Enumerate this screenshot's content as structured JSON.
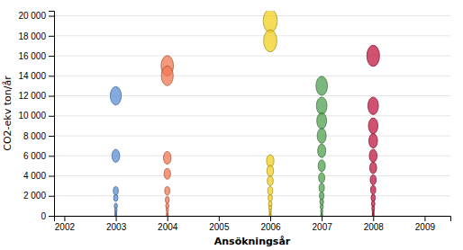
{
  "chart_data": {
    "type": "bubble",
    "xlabel": "Ansökningsår",
    "ylabel": "CO2-ekv ton/år",
    "xlim": [
      2001.8,
      2009.5
    ],
    "ylim": [
      0,
      20500
    ],
    "xticks": [
      2002,
      2003,
      2004,
      2005,
      2006,
      2007,
      2008,
      2009
    ],
    "yticks": [
      0,
      {
        "value": 2000,
        "label": "2 000"
      },
      {
        "value": 4000,
        "label": "4 000"
      },
      {
        "value": 6000,
        "label": "6 000"
      },
      {
        "value": 8000,
        "label": "8 000"
      },
      {
        "value": 10000,
        "label": "10 000"
      },
      {
        "value": 12000,
        "label": "12 000"
      },
      {
        "value": 14000,
        "label": "14 000"
      },
      {
        "value": 16000,
        "label": "16 000"
      },
      {
        "value": 18000,
        "label": "18 000"
      },
      {
        "value": 20000,
        "label": "20 000"
      }
    ],
    "grid": true,
    "series": [
      {
        "x": 2003,
        "color": "#5B8FD4",
        "values": [
          12000,
          6000,
          2500,
          1800,
          1000,
          600,
          350,
          180,
          80,
          30
        ]
      },
      {
        "x": 2004,
        "color": "#F07850",
        "values": [
          15000,
          14000,
          5800,
          4200,
          2500,
          1600,
          1000,
          600,
          280,
          100,
          30
        ]
      },
      {
        "x": 2006,
        "color": "#F0D020",
        "values": [
          19500,
          17500,
          5500,
          4500,
          3500,
          2500,
          1800,
          1200,
          800,
          500,
          300,
          180,
          100,
          50
        ]
      },
      {
        "x": 2007,
        "color": "#50A050",
        "values": [
          13000,
          11000,
          9500,
          8000,
          6500,
          5000,
          3800,
          2800,
          2000,
          1400,
          900,
          500,
          250,
          100,
          40
        ]
      },
      {
        "x": 2008,
        "color": "#C01840",
        "values": [
          16000,
          11000,
          9000,
          7500,
          6000,
          4800,
          3600,
          2600,
          1800,
          1200,
          750,
          450,
          250,
          120,
          50
        ]
      }
    ]
  }
}
